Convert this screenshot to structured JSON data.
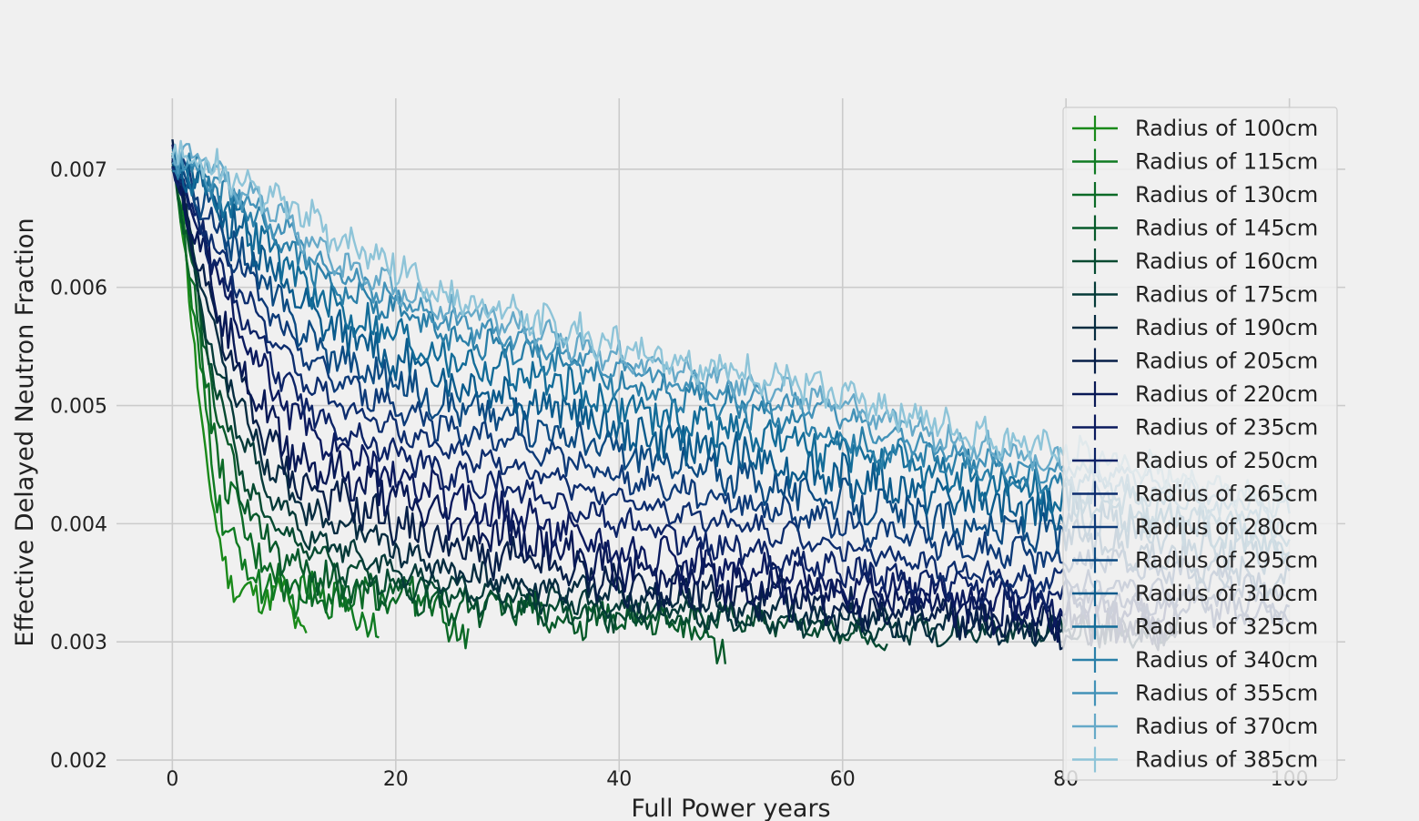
{
  "chart_data": {
    "type": "line",
    "title": "",
    "xlabel": "Full Power years",
    "ylabel": "Effective Delayed Neutron Fraction",
    "xlim": [
      -5,
      105
    ],
    "ylim": [
      0.0019,
      0.0076
    ],
    "xticks": [
      0,
      20,
      40,
      60,
      80,
      100
    ],
    "xtick_labels": [
      "0",
      "20",
      "40",
      "60",
      "80",
      "100"
    ],
    "yticks": [
      0.002,
      0.003,
      0.004,
      0.005,
      0.006,
      0.007
    ],
    "ytick_labels": [
      "0.002",
      "0.003",
      "0.004",
      "0.005",
      "0.006",
      "0.007"
    ],
    "grid": true,
    "legend_position": "right",
    "series": [
      {
        "name": "Radius of 100cm",
        "color": "#1a8a1a",
        "x": [
          0,
          1,
          2,
          3,
          4,
          5,
          6,
          8,
          10,
          12.2
        ],
        "y": [
          0.0071,
          0.0064,
          0.0055,
          0.0045,
          0.0039,
          0.0036,
          0.0034,
          0.0034,
          0.0034,
          0.003
        ]
      },
      {
        "name": "Radius of 115cm",
        "color": "#0f7a22",
        "x": [
          0,
          1,
          2,
          3,
          4,
          6,
          8,
          10,
          12,
          14,
          16,
          18.7
        ],
        "y": [
          0.0071,
          0.0065,
          0.0057,
          0.0049,
          0.0042,
          0.0037,
          0.0035,
          0.0034,
          0.0034,
          0.0034,
          0.0033,
          0.0031
        ]
      },
      {
        "name": "Radius of 130cm",
        "color": "#0b6a26",
        "x": [
          0,
          1,
          2,
          3,
          4,
          6,
          8,
          10,
          12,
          15,
          18,
          22,
          26.7
        ],
        "y": [
          0.0071,
          0.0066,
          0.0059,
          0.0052,
          0.0046,
          0.004,
          0.0037,
          0.0035,
          0.0034,
          0.0034,
          0.0034,
          0.0034,
          0.003
        ]
      },
      {
        "name": "Radius of 145cm",
        "color": "#075a2a",
        "x": [
          0,
          1,
          2,
          3,
          4,
          6,
          8,
          10,
          12,
          15,
          20,
          25,
          30,
          35,
          40,
          45,
          49.5
        ],
        "y": [
          0.0071,
          0.0066,
          0.006,
          0.0054,
          0.0049,
          0.0043,
          0.0039,
          0.0037,
          0.0036,
          0.0035,
          0.0034,
          0.0033,
          0.0033,
          0.0032,
          0.0032,
          0.0032,
          0.0029
        ]
      },
      {
        "name": "Radius of 160cm",
        "color": "#054a30",
        "x": [
          0,
          1,
          2,
          3,
          4,
          6,
          8,
          10,
          12,
          15,
          20,
          25,
          30,
          40,
          50,
          60,
          64
        ],
        "y": [
          0.0071,
          0.0067,
          0.0061,
          0.0056,
          0.0051,
          0.0045,
          0.0041,
          0.0039,
          0.0038,
          0.0036,
          0.0035,
          0.0034,
          0.0033,
          0.0032,
          0.0032,
          0.0031,
          0.003
        ]
      },
      {
        "name": "Radius of 175cm",
        "color": "#053a38",
        "x": [
          0,
          1,
          2,
          3,
          4,
          6,
          8,
          10,
          12,
          15,
          20,
          25,
          30,
          40,
          50,
          60,
          70,
          80
        ],
        "y": [
          0.0071,
          0.0067,
          0.0062,
          0.0057,
          0.0053,
          0.0048,
          0.0044,
          0.0041,
          0.0039,
          0.0038,
          0.0036,
          0.0035,
          0.0034,
          0.0033,
          0.0032,
          0.0031,
          0.0031,
          0.0031
        ]
      },
      {
        "name": "Radius of 190cm",
        "color": "#062c40",
        "x": [
          0,
          2,
          4,
          6,
          8,
          10,
          12,
          15,
          20,
          25,
          30,
          40,
          50,
          60,
          70,
          80,
          90
        ],
        "y": [
          0.0071,
          0.0063,
          0.0055,
          0.005,
          0.0046,
          0.0043,
          0.0041,
          0.004,
          0.0038,
          0.0036,
          0.0035,
          0.0034,
          0.0033,
          0.0032,
          0.0031,
          0.0031,
          0.0031
        ]
      },
      {
        "name": "Radius of 205cm",
        "color": "#071f48",
        "x": [
          0,
          2,
          4,
          6,
          8,
          10,
          12,
          15,
          20,
          25,
          30,
          40,
          50,
          60,
          70,
          80,
          90
        ],
        "y": [
          0.0071,
          0.0064,
          0.0057,
          0.0052,
          0.0048,
          0.0045,
          0.0043,
          0.0042,
          0.004,
          0.0038,
          0.0037,
          0.0035,
          0.0034,
          0.0033,
          0.0032,
          0.0031,
          0.0031
        ]
      },
      {
        "name": "Radius of 220cm",
        "color": "#081855",
        "x": [
          0,
          2,
          4,
          6,
          8,
          10,
          12,
          15,
          20,
          25,
          30,
          40,
          50,
          60,
          70,
          80,
          90
        ],
        "y": [
          0.0071,
          0.0065,
          0.0059,
          0.0054,
          0.005,
          0.0047,
          0.0045,
          0.0044,
          0.0042,
          0.004,
          0.0039,
          0.0036,
          0.0035,
          0.0034,
          0.0033,
          0.0032,
          0.0031
        ]
      },
      {
        "name": "Radius of 235cm",
        "color": "#0b1a5e",
        "x": [
          0,
          2,
          4,
          6,
          8,
          10,
          12,
          15,
          20,
          25,
          30,
          40,
          50,
          60,
          70,
          80,
          90
        ],
        "y": [
          0.0071,
          0.0066,
          0.0061,
          0.0056,
          0.0053,
          0.005,
          0.0048,
          0.0046,
          0.0044,
          0.0042,
          0.0041,
          0.0038,
          0.0036,
          0.0035,
          0.0034,
          0.0033,
          0.0032
        ]
      },
      {
        "name": "Radius of 250cm",
        "color": "#0c2366",
        "x": [
          0,
          2,
          4,
          6,
          8,
          10,
          12,
          15,
          20,
          25,
          30,
          40,
          50,
          60,
          70,
          80,
          90,
          100
        ],
        "y": [
          0.0071,
          0.0066,
          0.0062,
          0.0058,
          0.0055,
          0.0052,
          0.005,
          0.0048,
          0.0046,
          0.0044,
          0.0043,
          0.004,
          0.0038,
          0.0036,
          0.0035,
          0.0034,
          0.0033,
          0.0032
        ]
      },
      {
        "name": "Radius of 265cm",
        "color": "#0d2d6e",
        "x": [
          0,
          2,
          4,
          6,
          8,
          10,
          12,
          15,
          20,
          25,
          30,
          40,
          50,
          60,
          70,
          80,
          90,
          100
        ],
        "y": [
          0.0071,
          0.0067,
          0.0063,
          0.006,
          0.0057,
          0.0054,
          0.0052,
          0.005,
          0.0048,
          0.0046,
          0.0045,
          0.0042,
          0.004,
          0.0038,
          0.0036,
          0.0035,
          0.0034,
          0.0033
        ]
      },
      {
        "name": "Radius of 280cm",
        "color": "#0d3a78",
        "x": [
          0,
          2,
          4,
          6,
          8,
          10,
          12,
          15,
          20,
          25,
          30,
          40,
          50,
          60,
          70,
          80,
          90,
          100
        ],
        "y": [
          0.0071,
          0.0068,
          0.0065,
          0.0062,
          0.0059,
          0.0056,
          0.0054,
          0.0052,
          0.005,
          0.0048,
          0.0047,
          0.0044,
          0.0042,
          0.004,
          0.0038,
          0.0037,
          0.0036,
          0.0034
        ]
      },
      {
        "name": "Radius of 295cm",
        "color": "#0c4a82",
        "x": [
          0,
          2,
          4,
          6,
          8,
          10,
          12,
          15,
          20,
          25,
          30,
          40,
          50,
          60,
          70,
          80,
          90,
          100
        ],
        "y": [
          0.0071,
          0.0068,
          0.0066,
          0.0063,
          0.0061,
          0.0058,
          0.0056,
          0.0054,
          0.0052,
          0.005,
          0.0049,
          0.0046,
          0.0044,
          0.0042,
          0.004,
          0.0039,
          0.0037,
          0.0035
        ]
      },
      {
        "name": "Radius of 310cm",
        "color": "#0b5b8c",
        "x": [
          0,
          2,
          4,
          6,
          8,
          10,
          12,
          15,
          20,
          25,
          30,
          40,
          50,
          60,
          70,
          80,
          90,
          100
        ],
        "y": [
          0.0071,
          0.0069,
          0.0067,
          0.0065,
          0.0063,
          0.006,
          0.0058,
          0.0056,
          0.0054,
          0.0052,
          0.0051,
          0.0048,
          0.0046,
          0.0044,
          0.0042,
          0.0041,
          0.0039,
          0.0037
        ]
      },
      {
        "name": "Radius of 325cm",
        "color": "#136c98",
        "x": [
          0,
          2,
          4,
          6,
          8,
          10,
          12,
          15,
          20,
          25,
          30,
          40,
          50,
          60,
          70,
          80,
          90,
          100
        ],
        "y": [
          0.0071,
          0.0069,
          0.0068,
          0.0066,
          0.0064,
          0.0062,
          0.006,
          0.0058,
          0.0056,
          0.0054,
          0.0053,
          0.005,
          0.0048,
          0.0046,
          0.0044,
          0.0042,
          0.004,
          0.0038
        ]
      },
      {
        "name": "Radius of 340cm",
        "color": "#2a7fa8",
        "x": [
          0,
          2,
          4,
          6,
          8,
          10,
          12,
          15,
          20,
          25,
          30,
          40,
          50,
          60,
          70,
          80,
          90,
          100
        ],
        "y": [
          0.0071,
          0.007,
          0.0068,
          0.0067,
          0.0065,
          0.0063,
          0.0062,
          0.006,
          0.0058,
          0.0056,
          0.0055,
          0.0052,
          0.005,
          0.0047,
          0.0045,
          0.0043,
          0.0041,
          0.0039
        ]
      },
      {
        "name": "Radius of 355cm",
        "color": "#4392b8",
        "x": [
          0,
          2,
          4,
          6,
          8,
          10,
          12,
          15,
          20,
          25,
          30,
          40,
          50,
          60,
          70,
          80,
          90,
          100
        ],
        "y": [
          0.0071,
          0.007,
          0.0069,
          0.0068,
          0.0066,
          0.0065,
          0.0063,
          0.0061,
          0.0059,
          0.0057,
          0.0056,
          0.0053,
          0.0051,
          0.0049,
          0.0046,
          0.0044,
          0.0042,
          0.004
        ]
      },
      {
        "name": "Radius of 370cm",
        "color": "#66a9c8",
        "x": [
          0,
          2,
          4,
          6,
          8,
          10,
          12,
          15,
          20,
          25,
          30,
          40,
          50,
          60,
          70,
          80,
          90,
          100
        ],
        "y": [
          0.0071,
          0.0071,
          0.007,
          0.0068,
          0.0067,
          0.0066,
          0.0064,
          0.0062,
          0.006,
          0.0058,
          0.0057,
          0.0054,
          0.0052,
          0.005,
          0.0047,
          0.0045,
          0.0043,
          0.0041
        ]
      },
      {
        "name": "Radius of 385cm",
        "color": "#8ec4d8",
        "x": [
          0,
          2,
          4,
          6,
          8,
          10,
          12,
          15,
          20,
          25,
          30,
          40,
          50,
          60,
          70,
          80,
          90,
          100
        ],
        "y": [
          0.0071,
          0.0071,
          0.007,
          0.0069,
          0.0068,
          0.0067,
          0.0066,
          0.0064,
          0.0062,
          0.0059,
          0.0058,
          0.0055,
          0.0053,
          0.0051,
          0.0048,
          0.0046,
          0.0044,
          0.0042
        ]
      }
    ]
  }
}
